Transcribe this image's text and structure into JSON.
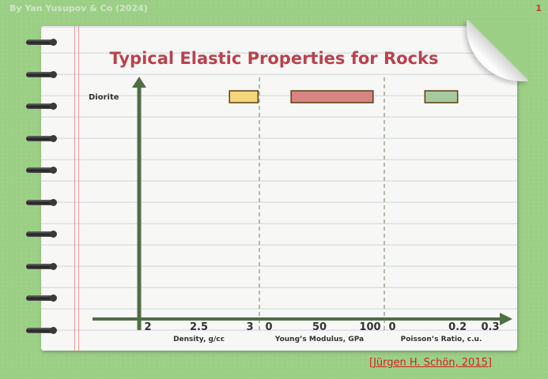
{
  "header": {
    "author": "By Yan Yusupov & Co (2024)",
    "page_number": "1"
  },
  "footer": {
    "citation": "[Jürgen H. Schön, 2015]"
  },
  "chart_data": {
    "type": "bar",
    "title": "Typical Elastic Properties for Rocks",
    "categories": [
      "Diorite"
    ],
    "panels": [
      {
        "xlabel": "Density, g/cc",
        "xlim": [
          2,
          3
        ],
        "ticks": [
          2,
          2.5,
          3
        ],
        "tick_labels": [
          "2",
          "2.5",
          "3"
        ],
        "ranges": [
          [
            2.8,
            3.08
          ]
        ],
        "color": "#f4d77b"
      },
      {
        "xlabel": "Young’s Modulus, GPa",
        "xlim": [
          0,
          100
        ],
        "ticks": [
          0,
          50,
          100
        ],
        "tick_labels": [
          "0",
          "50",
          "100"
        ],
        "ranges": [
          [
            22,
            103
          ]
        ],
        "color": "#d98484"
      },
      {
        "xlabel": "Poisson’s Ratio, c.u.",
        "xlim": [
          0,
          0.3
        ],
        "ticks": [
          0,
          0.2,
          0.3
        ],
        "tick_labels": [
          "0",
          "0.2",
          "0.3"
        ],
        "ranges": [
          [
            0.1,
            0.2
          ]
        ],
        "color": "#a8c9a0"
      }
    ],
    "grid": false
  }
}
